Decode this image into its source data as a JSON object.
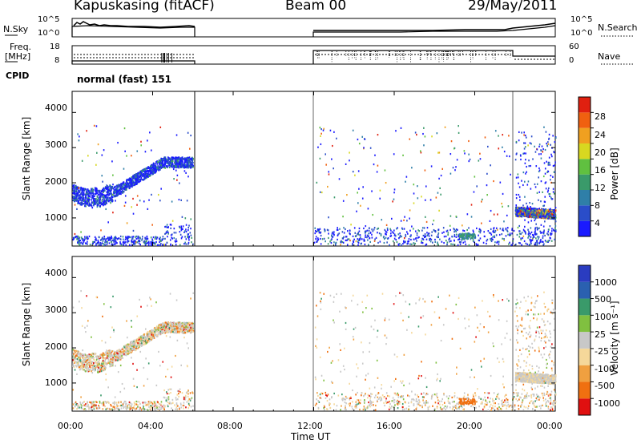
{
  "header": {
    "station": "Kapuskasing (fitACF)",
    "beam": "Beam 00",
    "date": "29/May/2011"
  },
  "panels": {
    "nsky": {
      "label": "N.Sky",
      "ticks": [
        "10^5",
        "10^0"
      ]
    },
    "nsearch": {
      "label": "N.Search",
      "ticks": [
        "10^5",
        "10^0"
      ]
    },
    "freq": {
      "label_line1": "Freq.",
      "label_line2": "[MHz]",
      "ticks": [
        "18",
        "8"
      ]
    },
    "nave": {
      "label": "Nave",
      "ticks": [
        "60",
        "0"
      ]
    },
    "cpid": {
      "label": "CPID",
      "value": "normal (fast) 151"
    }
  },
  "colors": {
    "power": [
      "#1a1aff",
      "#2a4dc9",
      "#2f7fa8",
      "#3a9a6a",
      "#60c040",
      "#d8d820",
      "#f0a020",
      "#f06010",
      "#e02010"
    ],
    "velocity": [
      "#e01010",
      "#f07010",
      "#f0a040",
      "#f5d89a",
      "#c8c8c8",
      "#80c040",
      "#3a9a6a",
      "#2a60b0",
      "#2a3cc0"
    ]
  },
  "chart_data": [
    {
      "type": "heatmap",
      "name": "power",
      "ylabel": "Slant Range [km]",
      "yticks": [
        "1000",
        "2000",
        "3000",
        "4000"
      ],
      "ylim": [
        200,
        4600
      ],
      "colorbar_label": "Power [dB]",
      "colorbar_ticks": [
        "4",
        "8",
        "12",
        "16",
        "20",
        "24",
        "28"
      ],
      "colorbar_range": [
        0,
        30
      ]
    },
    {
      "type": "heatmap",
      "name": "velocity",
      "ylabel": "Slant Range [km]",
      "yticks": [
        "1000",
        "2000",
        "3000",
        "4000"
      ],
      "ylim": [
        200,
        4600
      ],
      "colorbar_label": "Velocity  [m s⁻¹]",
      "colorbar_ticks": [
        "-1000",
        "-500",
        "-100",
        "-25",
        "25",
        "100",
        "500",
        "1000"
      ]
    }
  ],
  "xaxis": {
    "ticks": [
      "00:00",
      "04:00",
      "08:00",
      "12:00",
      "16:00",
      "20:00",
      "00:00"
    ],
    "label": "Time UT"
  }
}
